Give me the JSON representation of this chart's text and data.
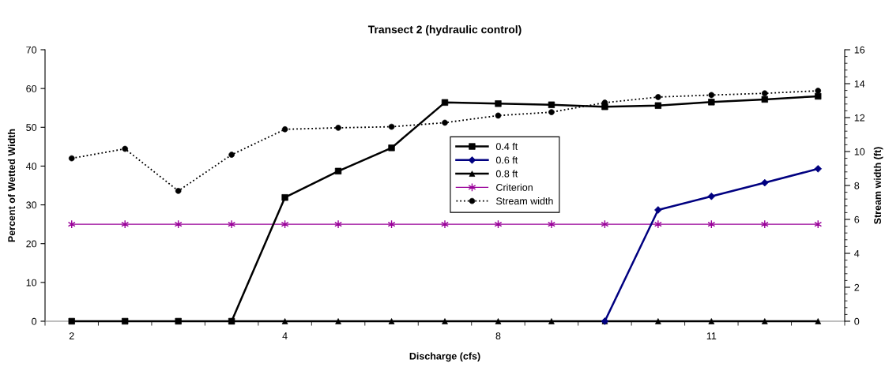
{
  "chart_data": {
    "type": "line",
    "title": "Transect 2 (hydraulic control)",
    "xlabel": "Discharge (cfs)",
    "ylabel": "Percent of Wetted Width",
    "y2label": "Stream width (ft)",
    "categories": [
      "2",
      null,
      null,
      null,
      "4",
      null,
      null,
      null,
      "8",
      null,
      null,
      null,
      "11",
      null,
      null
    ],
    "ylim": [
      0,
      70
    ],
    "yticks": [
      0,
      10,
      20,
      30,
      40,
      50,
      60,
      70
    ],
    "y2lim": [
      0,
      16
    ],
    "y2ticks": [
      0,
      2,
      4,
      6,
      8,
      10,
      12,
      14,
      16
    ],
    "grid": false,
    "legend": "center",
    "series": [
      {
        "name": "0.4 ft",
        "color": "#000000",
        "marker": "square",
        "line_style": "solid",
        "values": [
          0,
          0,
          0,
          0,
          31.9,
          38.7,
          44.7,
          56.4,
          56.1,
          55.8,
          55.3,
          55.6,
          56.5,
          57.2,
          58.0
        ]
      },
      {
        "name": "0.6 ft",
        "color": "#000080",
        "marker": "diamond",
        "line_style": "solid",
        "values": [
          null,
          null,
          null,
          null,
          null,
          null,
          null,
          null,
          null,
          null,
          0,
          28.7,
          32.2,
          35.7,
          39.3
        ]
      },
      {
        "name": "0.8 ft",
        "color": "#000000",
        "marker": "triangle",
        "line_style": "solid",
        "values": [
          null,
          null,
          null,
          0,
          0,
          0,
          0,
          0,
          0,
          0,
          0,
          0,
          0,
          0,
          0
        ]
      },
      {
        "name": "Criterion",
        "color": "#990099",
        "marker": "cross",
        "line_style": "solid",
        "values": [
          25,
          25,
          25,
          25,
          25,
          25,
          25,
          25,
          25,
          25,
          25,
          25,
          25,
          25,
          25
        ]
      },
      {
        "name": "Stream width",
        "color": "#000000",
        "marker": "circle",
        "line_style": "dotted",
        "axis": "y2",
        "values": [
          9.6,
          10.16,
          7.68,
          9.81,
          11.31,
          11.4,
          11.46,
          11.7,
          12.12,
          12.32,
          12.88,
          13.21,
          13.33,
          13.43,
          13.58
        ]
      }
    ]
  }
}
